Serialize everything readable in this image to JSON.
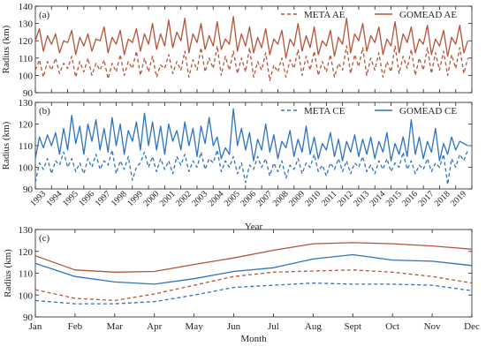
{
  "colors": {
    "ae": "#b5543a",
    "ce": "#2f72bf",
    "axis": "#222222"
  },
  "chart_data": [
    {
      "type": "line",
      "panel_label": "(a)",
      "ylabel": "Radius (km)",
      "ylim": [
        90,
        140
      ],
      "yticks": [
        90,
        100,
        110,
        120,
        130,
        140
      ],
      "xlim": [
        1993,
        2020
      ],
      "grid": false,
      "legend_position": "top-right",
      "series": [
        {
          "name": "META AE",
          "color": "#b5543a",
          "dash": true,
          "x_start": 1993,
          "x_step": 0.25,
          "values": [
            103,
            109,
            99,
            108,
            103,
            110,
            101,
            107,
            104,
            111,
            99,
            108,
            102,
            110,
            100,
            107,
            103,
            109,
            98,
            107,
            102,
            112,
            100,
            108,
            104,
            114,
            100,
            110,
            102,
            111,
            99,
            106,
            104,
            112,
            101,
            108,
            103,
            114,
            99,
            109,
            103,
            116,
            102,
            110,
            104,
            117,
            100,
            111,
            103,
            114,
            101,
            110,
            102,
            116,
            99,
            108,
            103,
            113,
            97,
            106,
            102,
            110,
            99,
            109,
            104,
            115,
            100,
            111,
            103,
            114,
            100,
            108,
            102,
            112,
            99,
            107,
            103,
            117,
            101,
            112,
            105,
            116,
            100,
            110,
            103,
            113,
            99,
            108,
            102,
            117,
            101,
            111,
            104,
            115,
            100,
            110,
            103,
            116,
            101,
            113,
            103,
            114,
            100,
            112,
            104,
            116,
            101,
            110
          ]
        },
        {
          "name": "GOMEAD AE",
          "color": "#b5543a",
          "dash": false,
          "x_start": 1993,
          "x_step": 0.25,
          "values": [
            120,
            127,
            114,
            123,
            118,
            124,
            113,
            120,
            119,
            126,
            112,
            122,
            117,
            124,
            114,
            121,
            120,
            128,
            113,
            122,
            118,
            126,
            112,
            121,
            119,
            127,
            114,
            124,
            118,
            130,
            115,
            124,
            117,
            132,
            116,
            125,
            120,
            133,
            113,
            124,
            119,
            130,
            115,
            123,
            117,
            131,
            115,
            121,
            118,
            134,
            114,
            124,
            117,
            128,
            113,
            122,
            116,
            127,
            112,
            121,
            118,
            126,
            110,
            121,
            117,
            130,
            114,
            123,
            116,
            128,
            112,
            120,
            117,
            126,
            111,
            122,
            118,
            133,
            113,
            124,
            120,
            130,
            114,
            123,
            119,
            128,
            112,
            121,
            117,
            131,
            113,
            124,
            119,
            128,
            113,
            121,
            118,
            129,
            112,
            121,
            117,
            126,
            111,
            122,
            118,
            129,
            113,
            120
          ]
        }
      ]
    },
    {
      "type": "line",
      "panel_label": "(b)",
      "ylabel": "Radius (km)",
      "xlabel": "Year",
      "ylim": [
        90,
        130
      ],
      "yticks": [
        90,
        100,
        110,
        120,
        130
      ],
      "xticks": [
        "1993",
        "1994",
        "1995",
        "1996",
        "1997",
        "1998",
        "1999",
        "2000",
        "2001",
        "2002",
        "2003",
        "2004",
        "2005",
        "2006",
        "2007",
        "2008",
        "2009",
        "2010",
        "2011",
        "2012",
        "2013",
        "2014",
        "2015",
        "2016",
        "2017",
        "2018",
        "2019"
      ],
      "xlim": [
        1993,
        2020
      ],
      "grid": false,
      "legend_position": "top-right",
      "series": [
        {
          "name": "META CE",
          "color": "#2f72bf",
          "dash": true,
          "x_start": 1993,
          "x_step": 0.25,
          "values": [
            93,
            102,
            99,
            104,
            97,
            103,
            101,
            107,
            100,
            104,
            98,
            102,
            97,
            104,
            100,
            106,
            99,
            103,
            101,
            108,
            97,
            103,
            99,
            105,
            94,
            100,
            102,
            107,
            100,
            105,
            98,
            104,
            99,
            103,
            97,
            105,
            101,
            106,
            98,
            103,
            100,
            107,
            99,
            104,
            102,
            108,
            98,
            103,
            100,
            105,
            97,
            102,
            93,
            101,
            99,
            105,
            100,
            104,
            96,
            102,
            98,
            103,
            95,
            101,
            99,
            104,
            97,
            102,
            100,
            106,
            98,
            101,
            96,
            102,
            99,
            104,
            98,
            103,
            97,
            102,
            100,
            105,
            98,
            101,
            97,
            103,
            99,
            104,
            98,
            102,
            100,
            107,
            99,
            103,
            97,
            101,
            99,
            104,
            98,
            102,
            100,
            106,
            92,
            104,
            100,
            106,
            103,
            108
          ]
        },
        {
          "name": "GOMEAD CE",
          "color": "#2f72bf",
          "dash": false,
          "x_start": 1993,
          "x_step": 0.25,
          "values": [
            104,
            114,
            109,
            115,
            110,
            116,
            106,
            118,
            108,
            124,
            111,
            119,
            106,
            120,
            112,
            122,
            108,
            118,
            107,
            123,
            110,
            120,
            106,
            117,
            112,
            121,
            108,
            125,
            110,
            121,
            108,
            119,
            106,
            120,
            112,
            117,
            108,
            121,
            110,
            118,
            105,
            119,
            111,
            123,
            110,
            114,
            104,
            109,
            106,
            127,
            110,
            118,
            108,
            116,
            103,
            113,
            108,
            120,
            107,
            115,
            104,
            112,
            109,
            117,
            105,
            113,
            107,
            119,
            106,
            114,
            104,
            111,
            108,
            116,
            105,
            113,
            103,
            112,
            107,
            115,
            105,
            113,
            106,
            114,
            104,
            112,
            107,
            116,
            103,
            111,
            106,
            114,
            105,
            122,
            106,
            114,
            104,
            112,
            107,
            118,
            103,
            111,
            106,
            114,
            108,
            112,
            111,
            110
          ]
        }
      ]
    },
    {
      "type": "line",
      "panel_label": "(c)",
      "ylabel": "Radius (km)",
      "xlabel": "Month",
      "ylim": [
        90,
        130
      ],
      "yticks": [
        90,
        100,
        110,
        120,
        130
      ],
      "categories": [
        "Jan",
        "Feb",
        "Mar",
        "Apr",
        "May",
        "Jun",
        "Jul",
        "Aug",
        "Sept",
        "Oct",
        "Nov",
        "Dec"
      ],
      "grid": false,
      "series": [
        {
          "name": "GOMEAD AE",
          "color": "#b5543a",
          "dash": false,
          "values": [
            118,
            111.5,
            110.5,
            110.8,
            114,
            117,
            120.5,
            123.5,
            124,
            123.5,
            122.5,
            121
          ]
        },
        {
          "name": "GOMEAD CE",
          "color": "#2f72bf",
          "dash": false,
          "values": [
            114.5,
            108.5,
            106,
            105,
            107.5,
            110.8,
            112.5,
            116.5,
            118.5,
            116,
            115.5,
            113.5
          ]
        },
        {
          "name": "META AE",
          "color": "#b5543a",
          "dash": true,
          "values": [
            102.5,
            98.5,
            97.5,
            100.5,
            104.5,
            108.5,
            110.5,
            111,
            111.5,
            110.5,
            108.5,
            105.5
          ]
        },
        {
          "name": "META CE",
          "color": "#2f72bf",
          "dash": true,
          "values": [
            97.5,
            96,
            96,
            97,
            100,
            103.5,
            104.5,
            105.5,
            105,
            105,
            104.5,
            102
          ]
        }
      ]
    }
  ]
}
